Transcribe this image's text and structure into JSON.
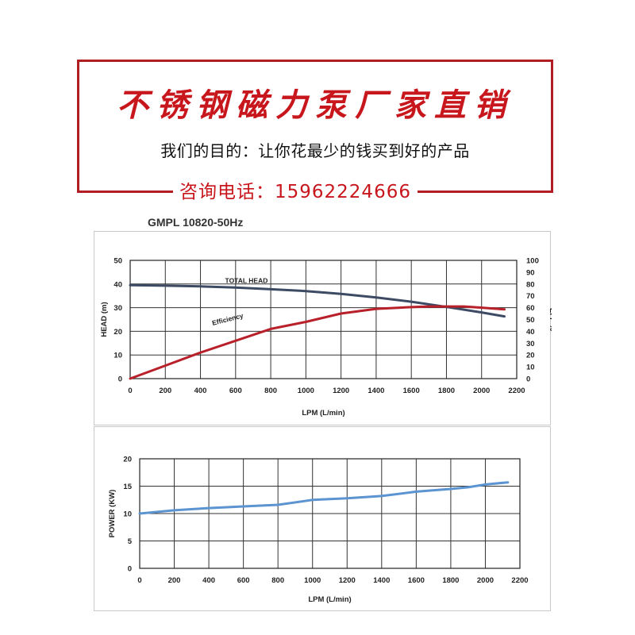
{
  "banner": {
    "title": "不锈钢磁力泵厂家直销",
    "subtitle": "我们的目的：让你花最少的钱买到好的产品",
    "phone": "咨询电话：15962224666"
  },
  "colors": {
    "accent": "#c8161d",
    "head": "#3c4a63",
    "efficiency": "#b8202a",
    "power": "#5b94d1"
  },
  "chart_data": [
    {
      "type": "line",
      "title": "GMPL 10820-50Hz",
      "xlabel": "LPM (L/min)",
      "ylabel": "HEAD (m)",
      "y2label": "EFF %",
      "xlim": [
        0,
        2200
      ],
      "ylim": [
        0,
        50
      ],
      "y2lim": [
        0,
        100
      ],
      "xticks": [
        0,
        200,
        400,
        600,
        800,
        1000,
        1200,
        1400,
        1600,
        1800,
        2000,
        2200
      ],
      "yticks": [
        0,
        10,
        20,
        30,
        40,
        50
      ],
      "y2ticks": [
        0,
        10,
        20,
        30,
        40,
        50,
        60,
        70,
        80,
        90,
        100
      ],
      "grid": true,
      "series": [
        {
          "name": "TOTAL HEAD",
          "axis": "left",
          "x": [
            0,
            200,
            400,
            600,
            800,
            1000,
            1200,
            1400,
            1600,
            1800,
            2000,
            2130
          ],
          "values": [
            39.5,
            39.3,
            39.0,
            38.5,
            37.8,
            37.0,
            35.8,
            34.3,
            32.5,
            30.3,
            28.0,
            26.3
          ]
        },
        {
          "name": "Efficiency",
          "axis": "right",
          "x": [
            0,
            200,
            400,
            600,
            800,
            1000,
            1200,
            1400,
            1600,
            1700,
            1800,
            1900,
            2000,
            2130
          ],
          "values": [
            0,
            11,
            22,
            32,
            42,
            48,
            55,
            59,
            60.5,
            61,
            61,
            61,
            60,
            58.5
          ]
        }
      ]
    },
    {
      "type": "line",
      "xlabel": "LPM (L/min)",
      "ylabel": "POWER (KW)",
      "xlim": [
        0,
        2200
      ],
      "ylim": [
        0,
        20
      ],
      "xticks": [
        0,
        200,
        400,
        600,
        800,
        1000,
        1200,
        1400,
        1600,
        1800,
        2000,
        2200
      ],
      "yticks": [
        0,
        5,
        10,
        15,
        20
      ],
      "grid": true,
      "series": [
        {
          "axis": "left",
          "x": [
            0,
            200,
            400,
            600,
            800,
            1000,
            1200,
            1400,
            1600,
            1800,
            1900,
            2000,
            2130
          ],
          "values": [
            10.0,
            10.6,
            11.0,
            11.3,
            11.6,
            12.5,
            12.8,
            13.2,
            14.0,
            14.5,
            14.8,
            15.3,
            15.7
          ]
        }
      ]
    }
  ]
}
